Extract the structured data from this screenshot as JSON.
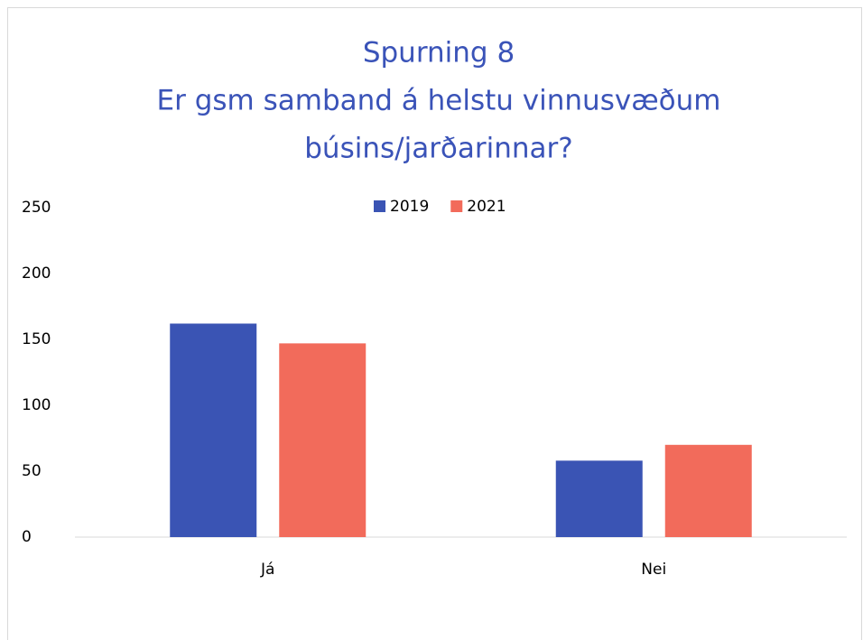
{
  "chart_data": {
    "type": "bar",
    "title": [
      "Spurning 8",
      "Er gsm samband á helstu vinnusvæðum",
      "búsins/jarðarinnar?"
    ],
    "categories": [
      "Já",
      "Nei"
    ],
    "series": [
      {
        "name": "2019",
        "color": "#3a54b4",
        "values": [
          162,
          58
        ]
      },
      {
        "name": "2021",
        "color": "#f26b5b",
        "values": [
          147,
          70
        ]
      }
    ],
    "ylim": [
      0,
      250
    ],
    "yticks": [
      0,
      50,
      100,
      150,
      200,
      250
    ],
    "grid": false,
    "legend": "top"
  }
}
